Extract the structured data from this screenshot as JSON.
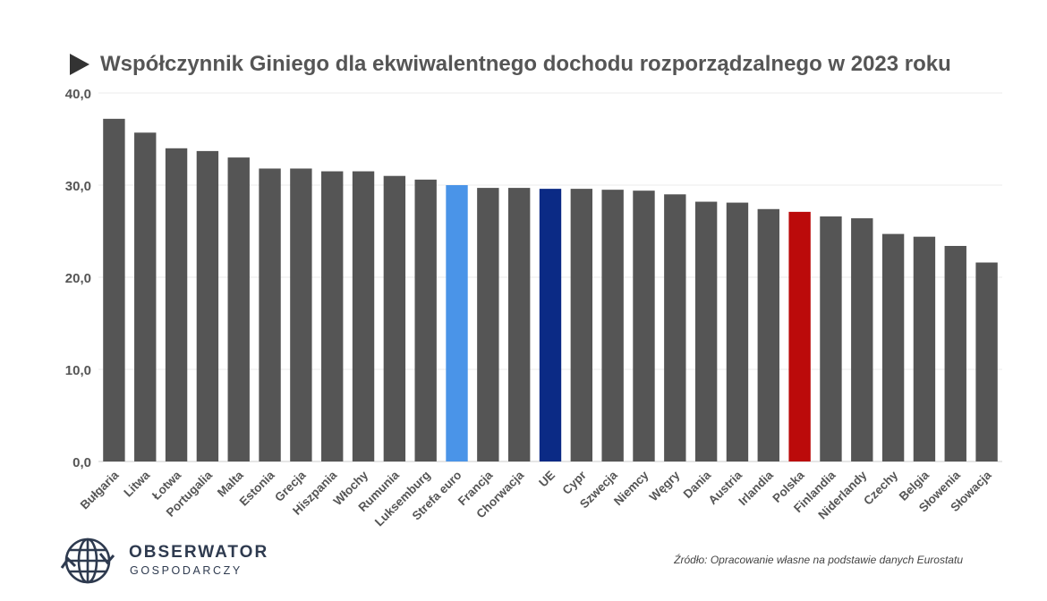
{
  "chart_data": {
    "type": "bar",
    "title": "Współczynnik Giniego dla ekwiwalentnego dochodu rozporządzalnego w 2023 roku",
    "categories": [
      "Bułgaria",
      "Litwa",
      "Łotwa",
      "Portugalia",
      "Malta",
      "Estonia",
      "Grecja",
      "Hiszpania",
      "Włochy",
      "Rumunia",
      "Luksemburg",
      "Strefa euro",
      "Francja",
      "Chorwacja",
      "UE",
      "Cypr",
      "Szwecja",
      "Niemcy",
      "Węgry",
      "Dania",
      "Austria",
      "Irlandia",
      "Polska",
      "Finlandia",
      "Niderlandy",
      "Czechy",
      "Belgia",
      "Słowenia",
      "Słowacja"
    ],
    "values": [
      37.2,
      35.7,
      34.0,
      33.7,
      33.0,
      31.8,
      31.8,
      31.5,
      31.5,
      31.0,
      30.6,
      30.0,
      29.7,
      29.7,
      29.6,
      29.6,
      29.5,
      29.4,
      29.0,
      28.2,
      28.1,
      27.4,
      27.1,
      26.6,
      26.4,
      24.7,
      24.4,
      23.4,
      21.6
    ],
    "yticks": [
      "0,0",
      "10,0",
      "20,0",
      "30,0",
      "40,0"
    ],
    "ylim": [
      0,
      40
    ],
    "grid": true,
    "colors": {
      "default": "#555555",
      "highlights": {
        "Strefa euro": "#4a94e8",
        "UE": "#0b2a85",
        "Polska": "#bb0a0a"
      }
    }
  },
  "brand": {
    "name": "OBSERWATOR",
    "subtitle": "GOSPODARCZY",
    "icon": "globe-arrows-icon"
  },
  "source": "Źródło: Opracowanie własne na podstawie danych Eurostatu"
}
